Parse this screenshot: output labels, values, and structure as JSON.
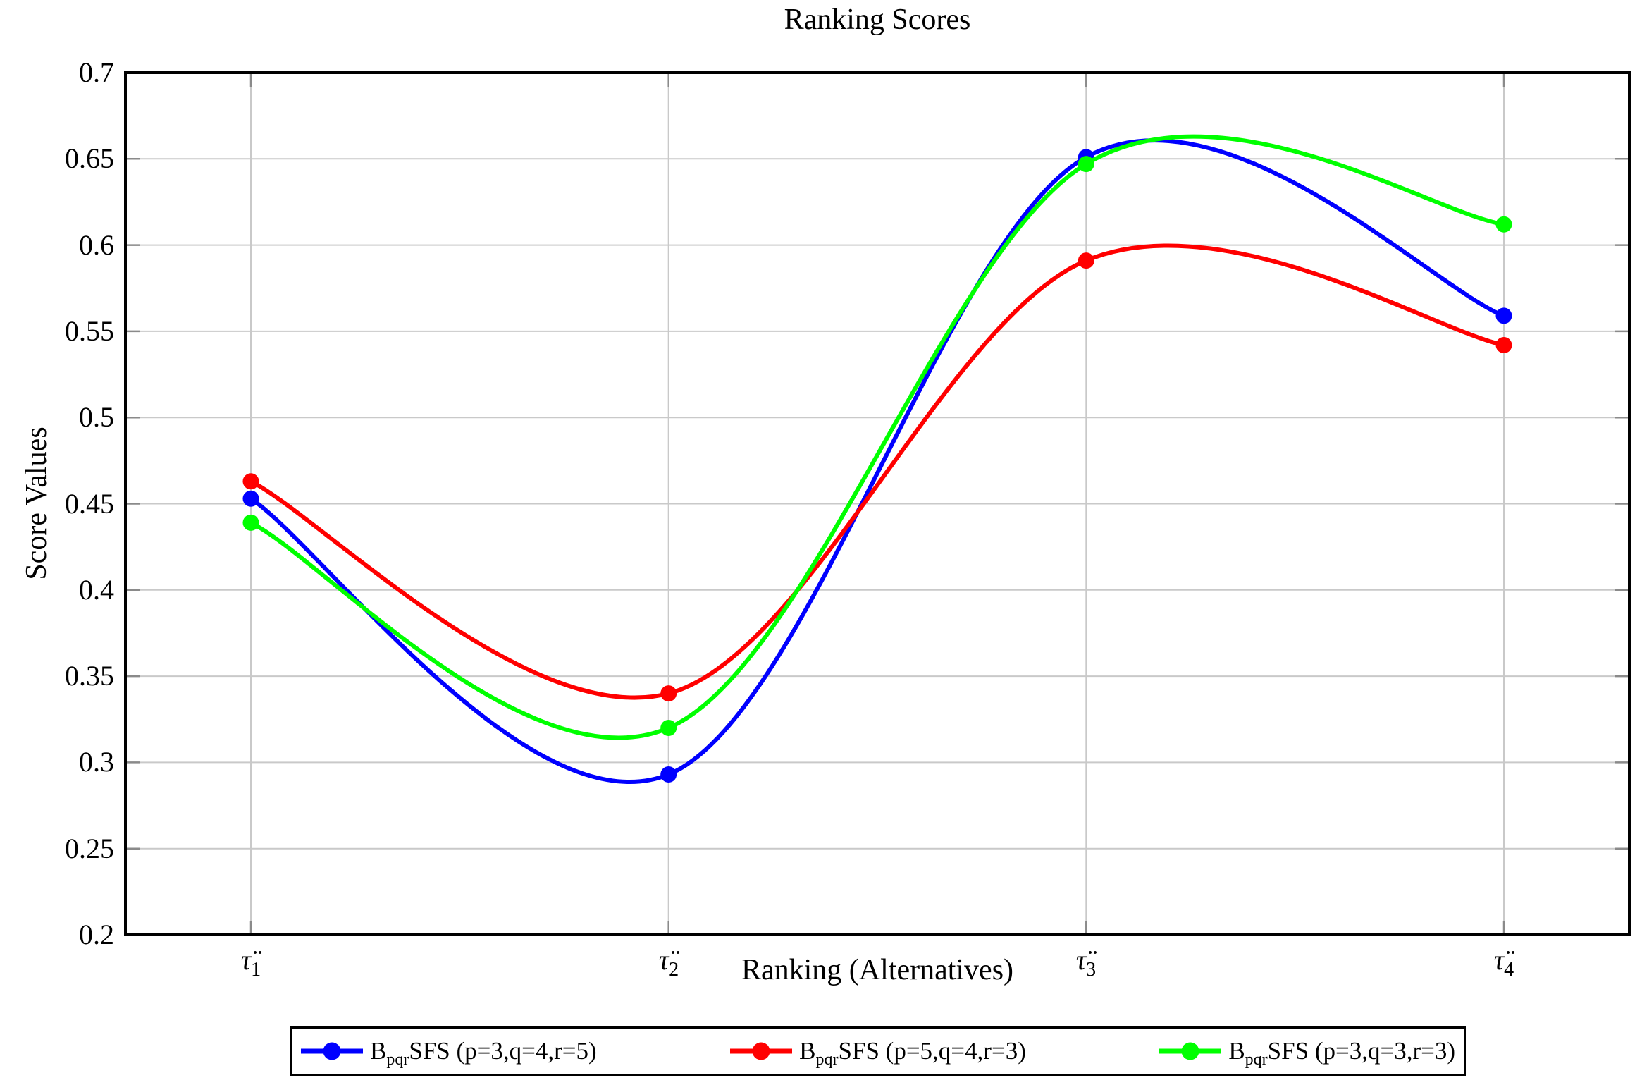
{
  "chart_data": {
    "type": "line",
    "title": "Ranking Scores",
    "xlabel": "Ranking (Alternatives)",
    "ylabel": "Score Values",
    "ylim": [
      0.2,
      0.7
    ],
    "ytick_step": 0.05,
    "ytick_labels": [
      "0.7",
      "0.65",
      "0.6",
      "0.55",
      "0.5",
      "0.45",
      "0.4",
      "0.35",
      "0.3",
      "0.25",
      "0.2"
    ],
    "x_tick_labels": [
      {
        "base": "τ̈",
        "sub": "1"
      },
      {
        "base": "τ̈",
        "sub": "2"
      },
      {
        "base": "τ̈",
        "sub": "3"
      },
      {
        "base": "τ̈",
        "sub": "4"
      }
    ],
    "grid": true,
    "legend_position": "below-center",
    "axis_color": "#000000",
    "grid_color": "#c9c9c9",
    "tick_color": "#8a8a8a",
    "background_color": "#ffffff",
    "series": [
      {
        "label_pre": "B",
        "label_sub": "pqr",
        "label_post": "SFS (p=3,q=4,r=5)",
        "color": "#0000ff",
        "values": [
          0.453,
          0.293,
          0.651,
          0.559
        ]
      },
      {
        "label_pre": "B",
        "label_sub": "pqr",
        "label_post": "SFS (p=5,q=4,r=3)",
        "color": "#ff0000",
        "values": [
          0.463,
          0.34,
          0.591,
          0.542
        ]
      },
      {
        "label_pre": "B",
        "label_sub": "pqr",
        "label_post": "SFS (p=3,q=3,r=3)",
        "color": "#00ff00",
        "values": [
          0.439,
          0.32,
          0.647,
          0.612
        ]
      }
    ]
  }
}
